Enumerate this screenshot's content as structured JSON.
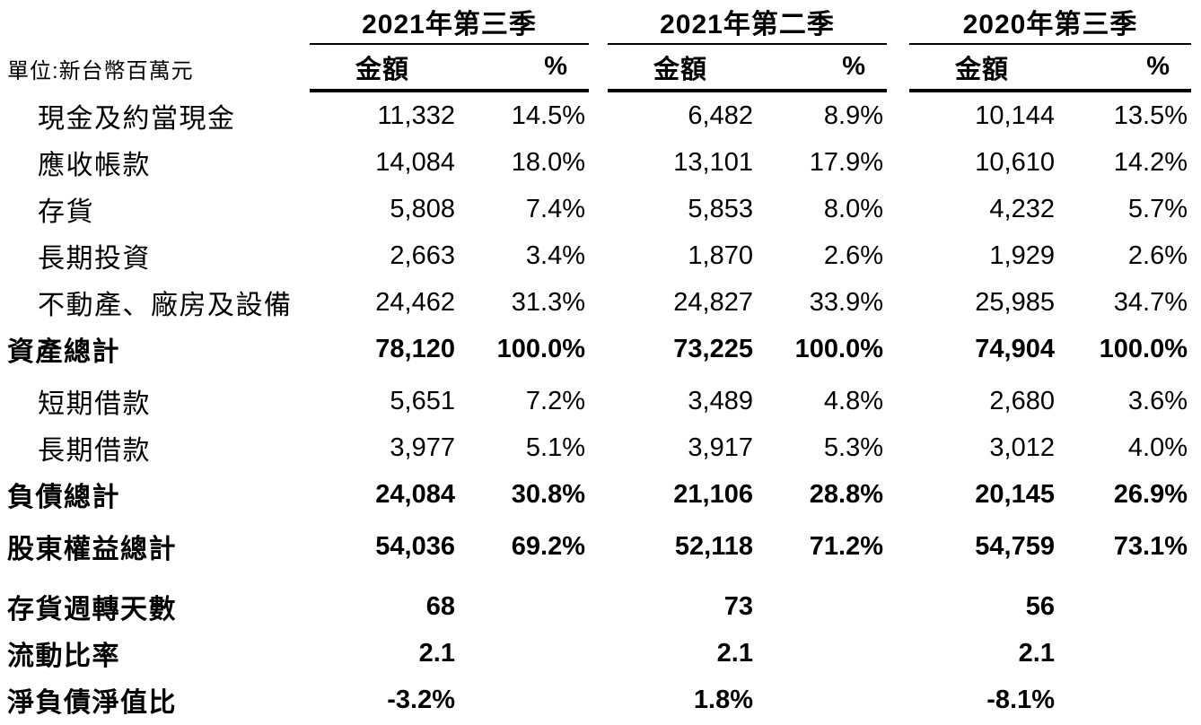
{
  "unit_label": "單位:新台幣百萬元",
  "columns": [
    {
      "title": "2021年第三季",
      "amount_header": "金額",
      "pct_header": "%"
    },
    {
      "title": "2021年第二季",
      "amount_header": "金額",
      "pct_header": "%"
    },
    {
      "title": "2020年第三季",
      "amount_header": "金額",
      "pct_header": "%"
    }
  ],
  "rows": [
    {
      "label": "現金及約當現金",
      "bold": false,
      "indent": true,
      "values": [
        {
          "amount": "11,332",
          "pct": "14.5%"
        },
        {
          "amount": "6,482",
          "pct": "8.9%"
        },
        {
          "amount": "10,144",
          "pct": "13.5%"
        }
      ]
    },
    {
      "label": "應收帳款",
      "bold": false,
      "indent": true,
      "values": [
        {
          "amount": "14,084",
          "pct": "18.0%"
        },
        {
          "amount": "13,101",
          "pct": "17.9%"
        },
        {
          "amount": "10,610",
          "pct": "14.2%"
        }
      ]
    },
    {
      "label": "存貨",
      "bold": false,
      "indent": true,
      "values": [
        {
          "amount": "5,808",
          "pct": "7.4%"
        },
        {
          "amount": "5,853",
          "pct": "8.0%"
        },
        {
          "amount": "4,232",
          "pct": "5.7%"
        }
      ]
    },
    {
      "label": "長期投資",
      "bold": false,
      "indent": true,
      "values": [
        {
          "amount": "2,663",
          "pct": "3.4%"
        },
        {
          "amount": "1,870",
          "pct": "2.6%"
        },
        {
          "amount": "1,929",
          "pct": "2.6%"
        }
      ]
    },
    {
      "label": "不動產、廠房及設備",
      "bold": false,
      "indent": true,
      "values": [
        {
          "amount": "24,462",
          "pct": "31.3%"
        },
        {
          "amount": "24,827",
          "pct": "33.9%"
        },
        {
          "amount": "25,985",
          "pct": "34.7%"
        }
      ]
    },
    {
      "label": "資產總計",
      "bold": true,
      "indent": false,
      "values": [
        {
          "amount": "78,120",
          "pct": "100.0%"
        },
        {
          "amount": "73,225",
          "pct": "100.0%"
        },
        {
          "amount": "74,904",
          "pct": "100.0%"
        }
      ]
    },
    {
      "label": "短期借款",
      "bold": false,
      "indent": true,
      "values": [
        {
          "amount": "5,651",
          "pct": "7.2%"
        },
        {
          "amount": "3,489",
          "pct": "4.8%"
        },
        {
          "amount": "2,680",
          "pct": "3.6%"
        }
      ]
    },
    {
      "label": "長期借款",
      "bold": false,
      "indent": true,
      "values": [
        {
          "amount": "3,977",
          "pct": "5.1%"
        },
        {
          "amount": "3,917",
          "pct": "5.3%"
        },
        {
          "amount": "3,012",
          "pct": "4.0%"
        }
      ]
    },
    {
      "label": "負債總計",
      "bold": true,
      "indent": false,
      "values": [
        {
          "amount": "24,084",
          "pct": "30.8%"
        },
        {
          "amount": "21,106",
          "pct": "28.8%"
        },
        {
          "amount": "20,145",
          "pct": "26.9%"
        }
      ]
    },
    {
      "label": "股東權益總計",
      "bold": true,
      "indent": false,
      "values": [
        {
          "amount": "54,036",
          "pct": "69.2%"
        },
        {
          "amount": "52,118",
          "pct": "71.2%"
        },
        {
          "amount": "54,759",
          "pct": "73.1%"
        }
      ]
    },
    {
      "label": "存貨週轉天數",
      "bold": true,
      "indent": false,
      "values": [
        {
          "amount": "68"
        },
        {
          "amount": "73"
        },
        {
          "amount": "56"
        }
      ]
    },
    {
      "label": "流動比率",
      "bold": true,
      "indent": false,
      "values": [
        {
          "amount": "2.1"
        },
        {
          "amount": "2.1"
        },
        {
          "amount": "2.1"
        }
      ]
    },
    {
      "label": "淨負債淨值比",
      "bold": true,
      "indent": false,
      "values": [
        {
          "amount": "-3.2%"
        },
        {
          "amount": "1.8%"
        },
        {
          "amount": "-8.1%"
        }
      ]
    }
  ],
  "colors": {
    "text": "#000000",
    "background": "#ffffff",
    "rule": "#000000"
  }
}
